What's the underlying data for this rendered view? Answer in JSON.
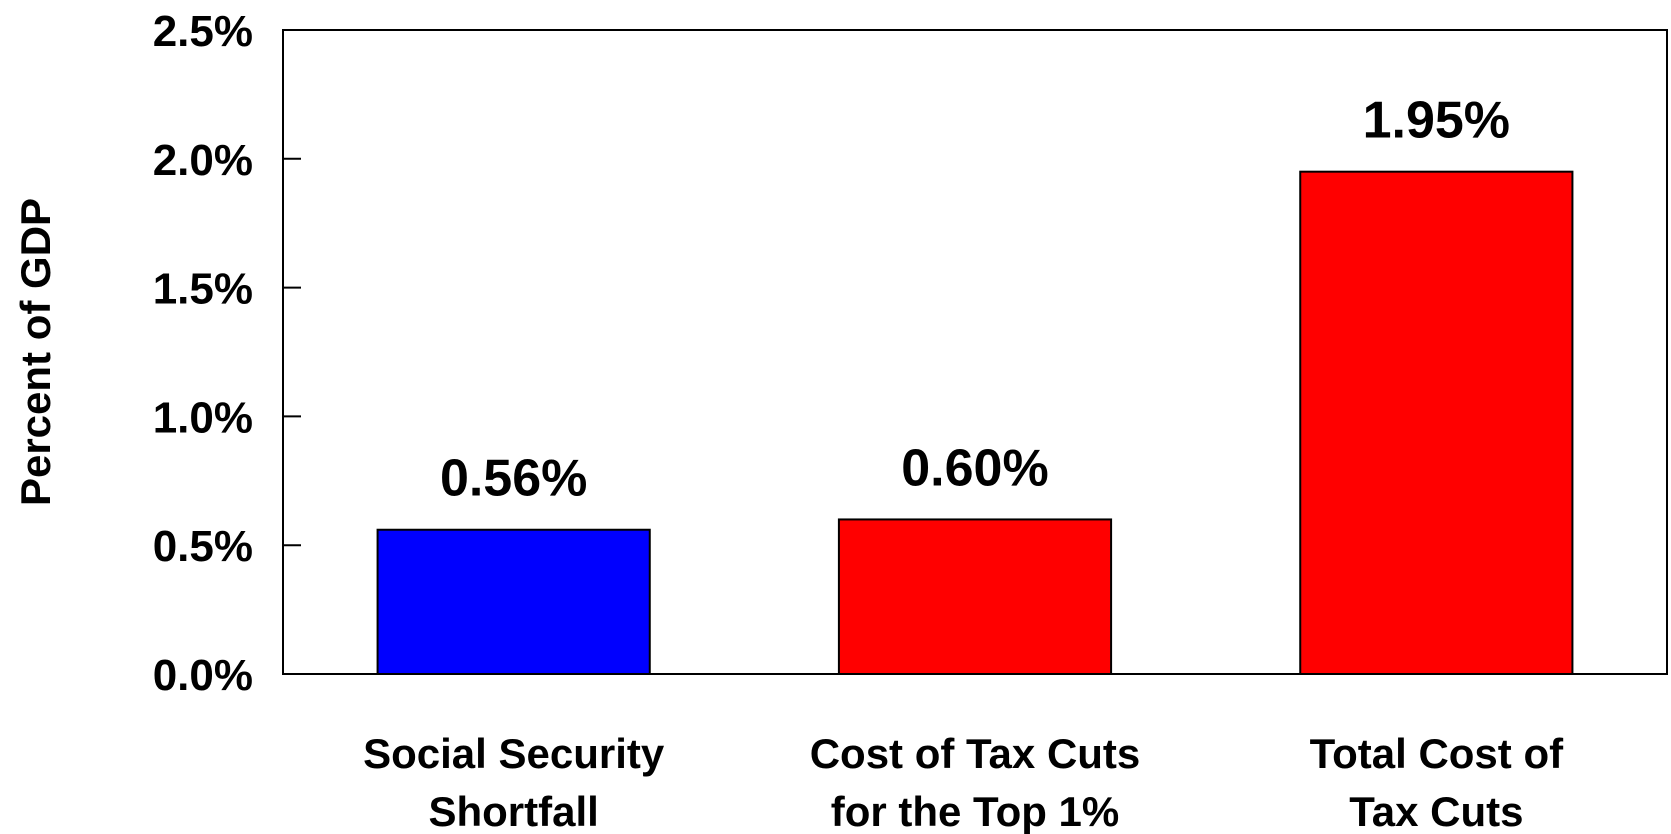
{
  "chart_data": {
    "type": "bar",
    "title": "",
    "xlabel": "",
    "ylabel": "Percent of GDP",
    "ylim": [
      0,
      2.5
    ],
    "yticks": [
      0.0,
      0.5,
      1.0,
      1.5,
      2.0,
      2.5
    ],
    "ytick_labels": [
      "0.0%",
      "0.5%",
      "1.0%",
      "1.5%",
      "2.0%",
      "2.5%"
    ],
    "grid": false,
    "legend": "none",
    "categories": [
      [
        "Social Security",
        "Shortfall"
      ],
      [
        "Cost of Tax Cuts",
        "for the Top 1%"
      ],
      [
        "Total Cost of",
        "Tax Cuts"
      ]
    ],
    "values": [
      0.56,
      0.6,
      1.95
    ],
    "data_labels": [
      "0.56%",
      "0.60%",
      "1.95%"
    ],
    "colors": [
      "#0000ff",
      "#ff0000",
      "#ff0000"
    ]
  }
}
